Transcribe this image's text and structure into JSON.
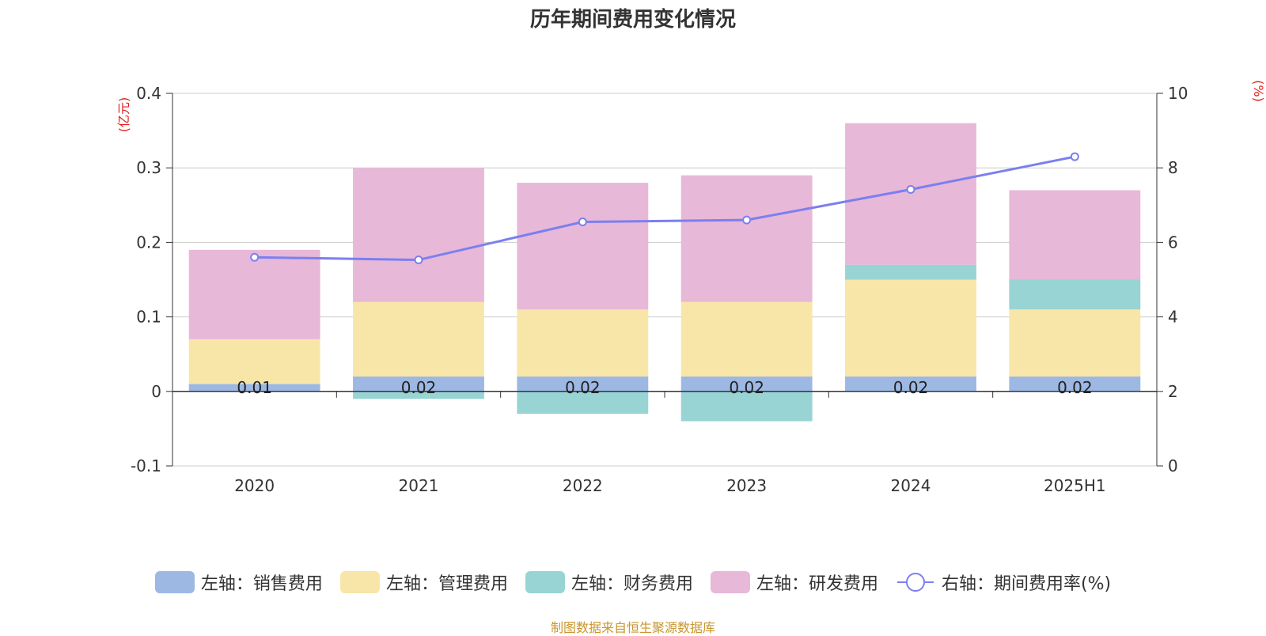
{
  "title": "历年期间费用变化情况",
  "footer": "制图数据来自恒生聚源数据库",
  "chart_data": {
    "type": "bar",
    "stacked": true,
    "categories": [
      "2020",
      "2021",
      "2022",
      "2023",
      "2024",
      "2025H1"
    ],
    "left_axis": {
      "unit": "(亿元)",
      "ylim": [
        -0.1,
        0.4
      ],
      "ticks": [
        "-0.1",
        "0",
        "0.1",
        "0.2",
        "0.3",
        "0.4"
      ]
    },
    "right_axis": {
      "unit": "(%)",
      "ylim": [
        0,
        10
      ],
      "ticks": [
        "0",
        "2",
        "4",
        "6",
        "8",
        "10"
      ]
    },
    "grid": true,
    "legend_position": "bottom",
    "series": [
      {
        "name": "左轴：销售费用",
        "type": "bar",
        "axis": "left",
        "color": "#9cb8e3",
        "values": [
          0.01,
          0.02,
          0.02,
          0.02,
          0.02,
          0.02
        ],
        "labels": [
          "0.01",
          "0.02",
          "0.02",
          "0.02",
          "0.02",
          "0.02"
        ]
      },
      {
        "name": "左轴：管理费用",
        "type": "bar",
        "axis": "left",
        "color": "#f8e6a8",
        "values": [
          0.06,
          0.1,
          0.09,
          0.1,
          0.13,
          0.09
        ]
      },
      {
        "name": "左轴：财务费用",
        "type": "bar",
        "axis": "left",
        "color": "#98d4d4",
        "values": [
          0.0,
          -0.01,
          -0.03,
          -0.04,
          0.02,
          0.04
        ]
      },
      {
        "name": "左轴：研发费用",
        "type": "bar",
        "axis": "left",
        "color": "#e8b8d8",
        "values": [
          0.12,
          0.18,
          0.17,
          0.17,
          0.19,
          0.12
        ]
      },
      {
        "name": "右轴：期间费用率(%)",
        "type": "line",
        "axis": "right",
        "color": "#7b7ff0",
        "values": [
          5.6,
          5.53,
          6.55,
          6.6,
          7.42,
          8.3
        ]
      }
    ]
  }
}
